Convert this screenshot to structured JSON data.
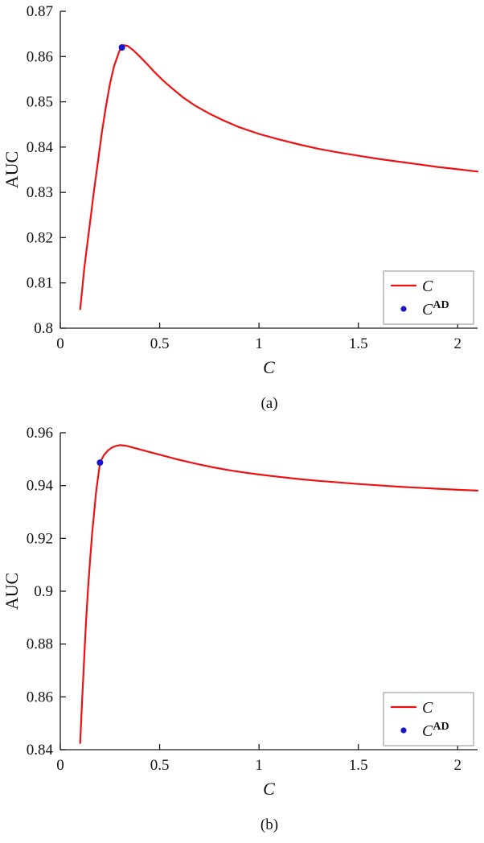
{
  "page": {
    "background": "#ffffff",
    "text_color": "#111111"
  },
  "chart_data": [
    {
      "type": "line",
      "caption": "(a)",
      "xlabel": "C",
      "ylabel": "AUC",
      "xlim": [
        0,
        2.1
      ],
      "ylim": [
        0.8,
        0.87
      ],
      "grid": false,
      "xticks": {
        "values": [
          0,
          0.5,
          1,
          1.5,
          2
        ],
        "labels": [
          "0",
          "0.5",
          "1",
          "1.5",
          "2"
        ]
      },
      "yticks": {
        "values": [
          0.8,
          0.81,
          0.82,
          0.83,
          0.84,
          0.85,
          0.86,
          0.87
        ],
        "labels": [
          "0.8",
          "0.81",
          "0.82",
          "0.83",
          "0.84",
          "0.85",
          "0.86",
          "0.87"
        ]
      },
      "legend": {
        "position": "bottom-right",
        "entries": [
          {
            "label": "C",
            "sup": "",
            "type": "line",
            "color": "#ee1111"
          },
          {
            "label": "C",
            "sup": "AD",
            "type": "dot",
            "color": "#1515d2"
          }
        ]
      },
      "series": [
        {
          "name": "C",
          "type": "line",
          "color": "#ee1111",
          "x": [
            0.1,
            0.11,
            0.12,
            0.13,
            0.15,
            0.17,
            0.19,
            0.21,
            0.23,
            0.25,
            0.27,
            0.3,
            0.32,
            0.34,
            0.37,
            0.4,
            0.44,
            0.48,
            0.52,
            0.57,
            0.62,
            0.68,
            0.75,
            0.82,
            0.9,
            1.0,
            1.1,
            1.2,
            1.3,
            1.4,
            1.5,
            1.6,
            1.7,
            1.8,
            1.9,
            2.0,
            2.1
          ],
          "y": [
            0.8042,
            0.8085,
            0.813,
            0.8165,
            0.8235,
            0.8305,
            0.837,
            0.8435,
            0.849,
            0.854,
            0.8578,
            0.8615,
            0.8625,
            0.8623,
            0.8613,
            0.86,
            0.8582,
            0.8563,
            0.8546,
            0.8527,
            0.8509,
            0.8491,
            0.8474,
            0.8459,
            0.8444,
            0.8429,
            0.8417,
            0.8406,
            0.8396,
            0.8388,
            0.8381,
            0.8374,
            0.8368,
            0.8362,
            0.8356,
            0.8351,
            0.8346
          ]
        }
      ],
      "markers": [
        {
          "name": "C^AD",
          "color": "#1515d2",
          "x": 0.31,
          "y": 0.862
        }
      ]
    },
    {
      "type": "line",
      "caption": "(b)",
      "xlabel": "C",
      "ylabel": "AUC",
      "xlim": [
        0,
        2.1
      ],
      "ylim": [
        0.84,
        0.96
      ],
      "grid": false,
      "xticks": {
        "values": [
          0,
          0.5,
          1,
          1.5,
          2
        ],
        "labels": [
          "0",
          "0.5",
          "1",
          "1.5",
          "2"
        ]
      },
      "yticks": {
        "values": [
          0.84,
          0.86,
          0.88,
          0.9,
          0.92,
          0.94,
          0.96
        ],
        "labels": [
          "0.84",
          "0.86",
          "0.88",
          "0.9",
          "0.92",
          "0.94",
          "0.96"
        ]
      },
      "legend": {
        "position": "bottom-right",
        "entries": [
          {
            "label": "C",
            "sup": "",
            "type": "line",
            "color": "#ee1111"
          },
          {
            "label": "C",
            "sup": "AD",
            "type": "dot",
            "color": "#1515d2"
          }
        ]
      },
      "series": [
        {
          "name": "C",
          "type": "line",
          "color": "#ee1111",
          "x": [
            0.1,
            0.11,
            0.12,
            0.13,
            0.14,
            0.15,
            0.16,
            0.18,
            0.2,
            0.22,
            0.24,
            0.26,
            0.28,
            0.3,
            0.33,
            0.36,
            0.4,
            0.44,
            0.48,
            0.53,
            0.58,
            0.64,
            0.7,
            0.77,
            0.85,
            0.93,
            1.0,
            1.1,
            1.2,
            1.3,
            1.4,
            1.5,
            1.6,
            1.7,
            1.8,
            1.9,
            2.0,
            2.1
          ],
          "y": [
            0.8425,
            0.859,
            0.8745,
            0.889,
            0.9015,
            0.912,
            0.9215,
            0.9375,
            0.9487,
            0.9516,
            0.9533,
            0.9544,
            0.955,
            0.9553,
            0.9551,
            0.9545,
            0.9537,
            0.9529,
            0.9521,
            0.9511,
            0.9501,
            0.949,
            0.948,
            0.9469,
            0.9458,
            0.9449,
            0.9442,
            0.9433,
            0.9425,
            0.9418,
            0.9412,
            0.9406,
            0.9401,
            0.9396,
            0.9392,
            0.9388,
            0.9384,
            0.9381
          ]
        }
      ],
      "markers": [
        {
          "name": "C^AD",
          "color": "#1515d2",
          "x": 0.2,
          "y": 0.9487
        }
      ]
    }
  ]
}
